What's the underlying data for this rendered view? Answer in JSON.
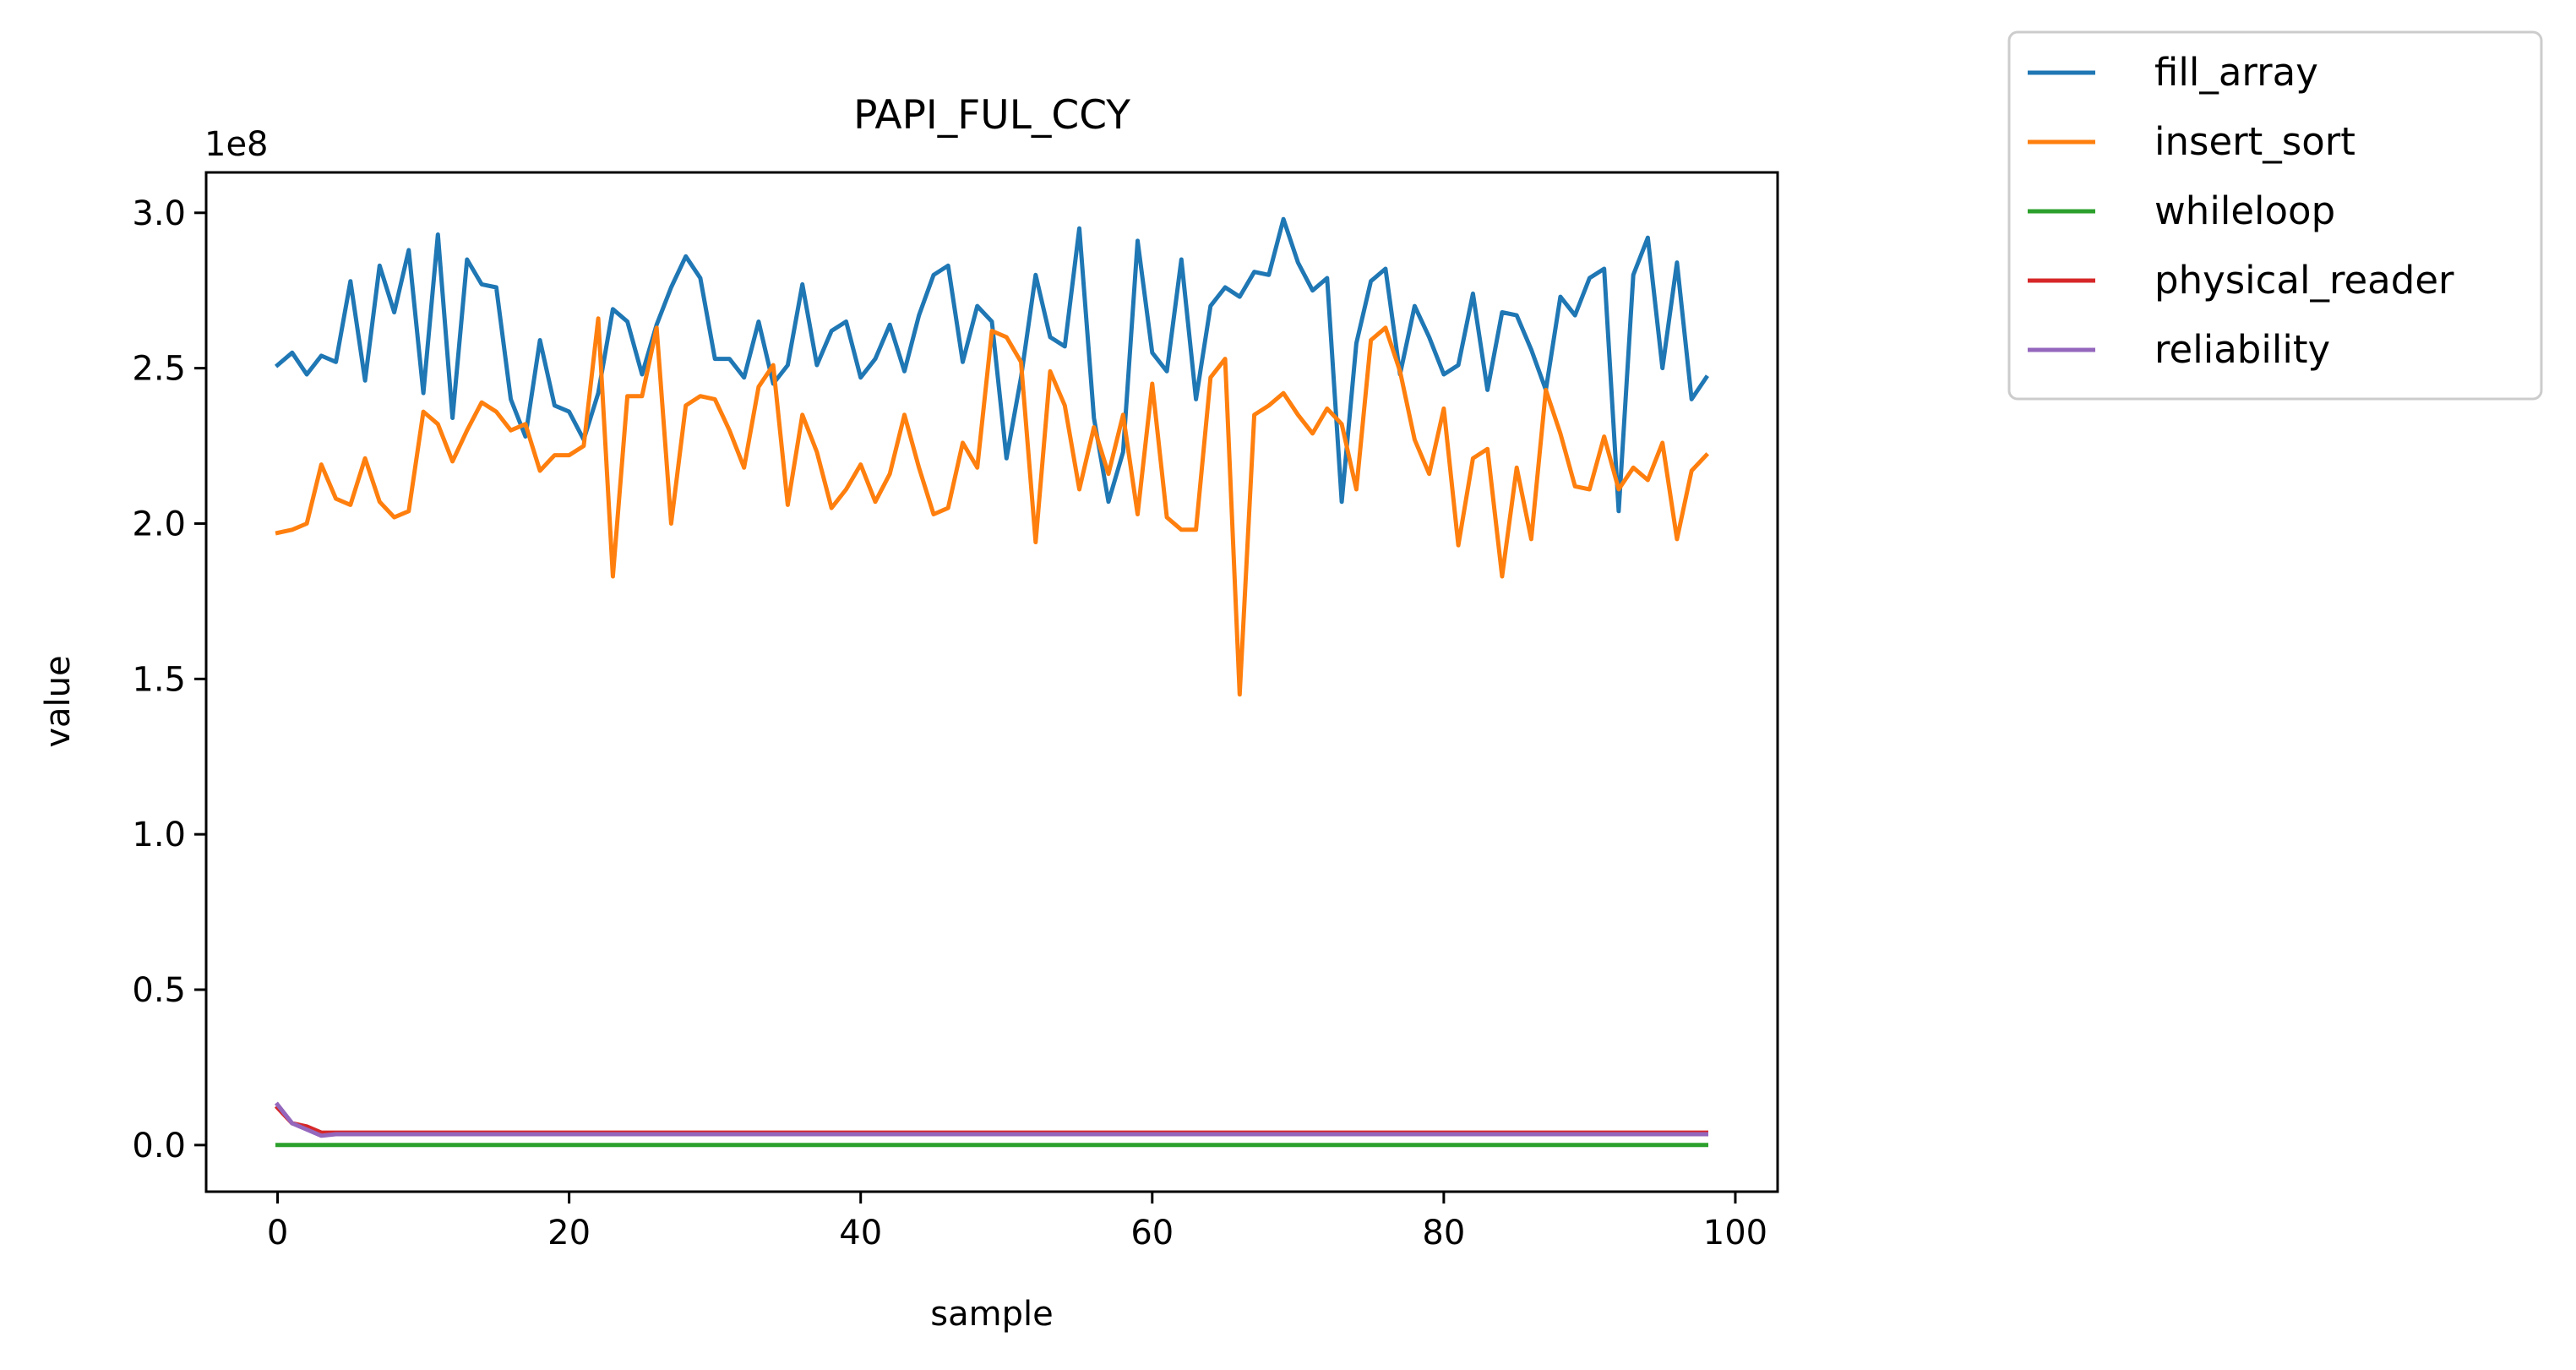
{
  "chart_data": {
    "type": "line",
    "title": "PAPI_FUL_CCY",
    "xlabel": "sample",
    "ylabel": "value",
    "y_offset_label": "1e8",
    "xlim": [
      -4.9,
      102.9
    ],
    "ylim": [
      -0.15,
      3.13
    ],
    "x_ticks": [
      0,
      20,
      40,
      60,
      80,
      100
    ],
    "x_tick_labels": [
      "0",
      "20",
      "40",
      "60",
      "80",
      "100"
    ],
    "y_ticks": [
      0.0,
      0.5,
      1.0,
      1.5,
      2.0,
      2.5,
      3.0
    ],
    "y_tick_labels": [
      "0.0",
      "0.5",
      "1.0",
      "1.5",
      "2.0",
      "2.5",
      "3.0"
    ],
    "y_units_note": "values in units of 1e8",
    "grid": false,
    "legend_position": "outside-top-right",
    "series": [
      {
        "name": "fill_array",
        "color": "#1f77b4",
        "values": [
          2.51,
          2.55,
          2.48,
          2.54,
          2.52,
          2.78,
          2.46,
          2.83,
          2.68,
          2.88,
          2.42,
          2.93,
          2.34,
          2.85,
          2.77,
          2.76,
          2.4,
          2.28,
          2.59,
          2.38,
          2.36,
          2.27,
          2.42,
          2.69,
          2.65,
          2.48,
          2.64,
          2.76,
          2.86,
          2.79,
          2.53,
          2.53,
          2.47,
          2.65,
          2.45,
          2.51,
          2.77,
          2.51,
          2.62,
          2.65,
          2.47,
          2.53,
          2.64,
          2.49,
          2.67,
          2.8,
          2.83,
          2.52,
          2.7,
          2.65,
          2.21,
          2.47,
          2.8,
          2.6,
          2.57,
          2.95,
          2.34,
          2.07,
          2.23,
          2.91,
          2.55,
          2.49,
          2.85,
          2.4,
          2.7,
          2.76,
          2.73,
          2.81,
          2.8,
          2.98,
          2.84,
          2.75,
          2.79,
          2.07,
          2.58,
          2.78,
          2.82,
          2.48,
          2.7,
          2.6,
          2.48,
          2.51,
          2.74,
          2.43,
          2.68,
          2.67,
          2.56,
          2.43,
          2.73,
          2.67,
          2.79,
          2.82,
          2.04,
          2.8,
          2.92,
          2.5,
          2.84,
          2.4,
          2.47
        ]
      },
      {
        "name": "insert_sort",
        "color": "#ff7f0e",
        "values": [
          1.97,
          1.98,
          2.0,
          2.19,
          2.08,
          2.06,
          2.21,
          2.07,
          2.02,
          2.04,
          2.36,
          2.32,
          2.2,
          2.3,
          2.39,
          2.36,
          2.3,
          2.32,
          2.17,
          2.22,
          2.22,
          2.25,
          2.66,
          1.83,
          2.41,
          2.41,
          2.63,
          2.0,
          2.38,
          2.41,
          2.4,
          2.3,
          2.18,
          2.44,
          2.51,
          2.06,
          2.35,
          2.23,
          2.05,
          2.11,
          2.19,
          2.07,
          2.16,
          2.35,
          2.18,
          2.03,
          2.05,
          2.26,
          2.18,
          2.62,
          2.6,
          2.52,
          1.94,
          2.49,
          2.38,
          2.11,
          2.31,
          2.16,
          2.35,
          2.03,
          2.45,
          2.02,
          1.98,
          1.98,
          2.47,
          2.53,
          1.45,
          2.35,
          2.38,
          2.42,
          2.35,
          2.29,
          2.37,
          2.32,
          2.11,
          2.59,
          2.63,
          2.49,
          2.27,
          2.16,
          2.37,
          1.93,
          2.21,
          2.24,
          1.83,
          2.18,
          1.95,
          2.43,
          2.29,
          2.12,
          2.11,
          2.28,
          2.11,
          2.18,
          2.14,
          2.26,
          1.95,
          2.17,
          2.22
        ]
      },
      {
        "name": "whileloop",
        "color": "#2ca02c",
        "values": [
          0.0,
          0.0,
          0.0,
          0.0,
          0.0,
          0.0,
          0.0,
          0.0,
          0.0,
          0.0,
          0.0,
          0.0,
          0.0,
          0.0,
          0.0,
          0.0,
          0.0,
          0.0,
          0.0,
          0.0,
          0.0,
          0.0,
          0.0,
          0.0,
          0.0,
          0.0,
          0.0,
          0.0,
          0.0,
          0.0,
          0.0,
          0.0,
          0.0,
          0.0,
          0.0,
          0.0,
          0.0,
          0.0,
          0.0,
          0.0,
          0.0,
          0.0,
          0.0,
          0.0,
          0.0,
          0.0,
          0.0,
          0.0,
          0.0,
          0.0,
          0.0,
          0.0,
          0.0,
          0.0,
          0.0,
          0.0,
          0.0,
          0.0,
          0.0,
          0.0,
          0.0,
          0.0,
          0.0,
          0.0,
          0.0,
          0.0,
          0.0,
          0.0,
          0.0,
          0.0,
          0.0,
          0.0,
          0.0,
          0.0,
          0.0,
          0.0,
          0.0,
          0.0,
          0.0,
          0.0,
          0.0,
          0.0,
          0.0,
          0.0,
          0.0,
          0.0,
          0.0,
          0.0,
          0.0,
          0.0,
          0.0,
          0.0,
          0.0,
          0.0,
          0.0,
          0.0,
          0.0,
          0.0,
          0.0
        ]
      },
      {
        "name": "physical_reader",
        "color": "#d62728",
        "values": [
          0.12,
          0.07,
          0.06,
          0.04,
          0.04,
          0.04,
          0.04,
          0.04,
          0.04,
          0.04,
          0.04,
          0.04,
          0.04,
          0.04,
          0.04,
          0.04,
          0.04,
          0.04,
          0.04,
          0.04,
          0.04,
          0.04,
          0.04,
          0.04,
          0.04,
          0.04,
          0.04,
          0.04,
          0.04,
          0.04,
          0.04,
          0.04,
          0.04,
          0.04,
          0.04,
          0.04,
          0.04,
          0.04,
          0.04,
          0.04,
          0.04,
          0.04,
          0.04,
          0.04,
          0.04,
          0.04,
          0.04,
          0.04,
          0.04,
          0.04,
          0.04,
          0.04,
          0.04,
          0.04,
          0.04,
          0.04,
          0.04,
          0.04,
          0.04,
          0.04,
          0.04,
          0.04,
          0.04,
          0.04,
          0.04,
          0.04,
          0.04,
          0.04,
          0.04,
          0.04,
          0.04,
          0.04,
          0.04,
          0.04,
          0.04,
          0.04,
          0.04,
          0.04,
          0.04,
          0.04,
          0.04,
          0.04,
          0.04,
          0.04,
          0.04,
          0.04,
          0.04,
          0.04,
          0.04,
          0.04,
          0.04,
          0.04,
          0.04,
          0.04,
          0.04,
          0.04,
          0.04,
          0.04,
          0.04
        ]
      },
      {
        "name": "reliability",
        "color": "#9467bd",
        "values": [
          0.13,
          0.07,
          0.05,
          0.03,
          0.035,
          0.035,
          0.035,
          0.035,
          0.035,
          0.035,
          0.035,
          0.035,
          0.035,
          0.035,
          0.035,
          0.035,
          0.035,
          0.035,
          0.035,
          0.035,
          0.035,
          0.035,
          0.035,
          0.035,
          0.035,
          0.035,
          0.035,
          0.035,
          0.035,
          0.035,
          0.035,
          0.035,
          0.035,
          0.035,
          0.035,
          0.035,
          0.035,
          0.035,
          0.035,
          0.035,
          0.035,
          0.035,
          0.035,
          0.035,
          0.035,
          0.035,
          0.035,
          0.035,
          0.035,
          0.035,
          0.035,
          0.035,
          0.035,
          0.035,
          0.035,
          0.035,
          0.035,
          0.035,
          0.035,
          0.035,
          0.035,
          0.035,
          0.035,
          0.035,
          0.035,
          0.035,
          0.035,
          0.035,
          0.035,
          0.035,
          0.035,
          0.035,
          0.035,
          0.035,
          0.035,
          0.035,
          0.035,
          0.035,
          0.035,
          0.035,
          0.035,
          0.035,
          0.035,
          0.035,
          0.035,
          0.035,
          0.035,
          0.035,
          0.035,
          0.035,
          0.035,
          0.035,
          0.035,
          0.035,
          0.035,
          0.035,
          0.035,
          0.035,
          0.035
        ]
      }
    ]
  }
}
